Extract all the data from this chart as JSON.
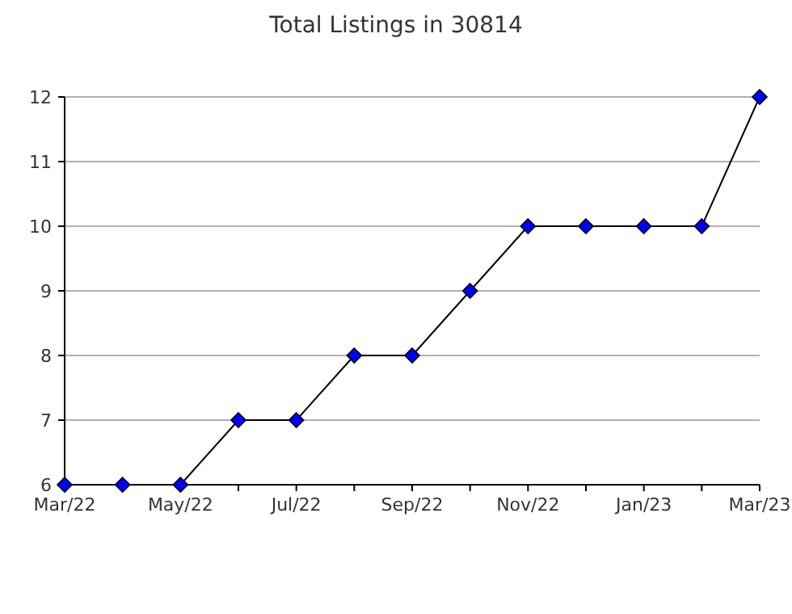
{
  "chart_data": {
    "type": "line",
    "title": "Total Listings in 30814",
    "categories": [
      "Mar/22",
      null,
      "May/22",
      null,
      "Jul/22",
      null,
      "Sep/22",
      null,
      "Nov/22",
      null,
      "Jan/23",
      null,
      "Mar/23"
    ],
    "series": [
      {
        "color": "#0000ff",
        "values": [
          6,
          6,
          6,
          7,
          7,
          8,
          8,
          9,
          10,
          10,
          10,
          10,
          12
        ]
      }
    ],
    "ylim": [
      6,
      12
    ],
    "yticks": [
      6,
      7,
      8,
      9,
      10,
      11,
      12
    ],
    "grid": "y",
    "marker": "diamond",
    "line_style": "solid"
  }
}
